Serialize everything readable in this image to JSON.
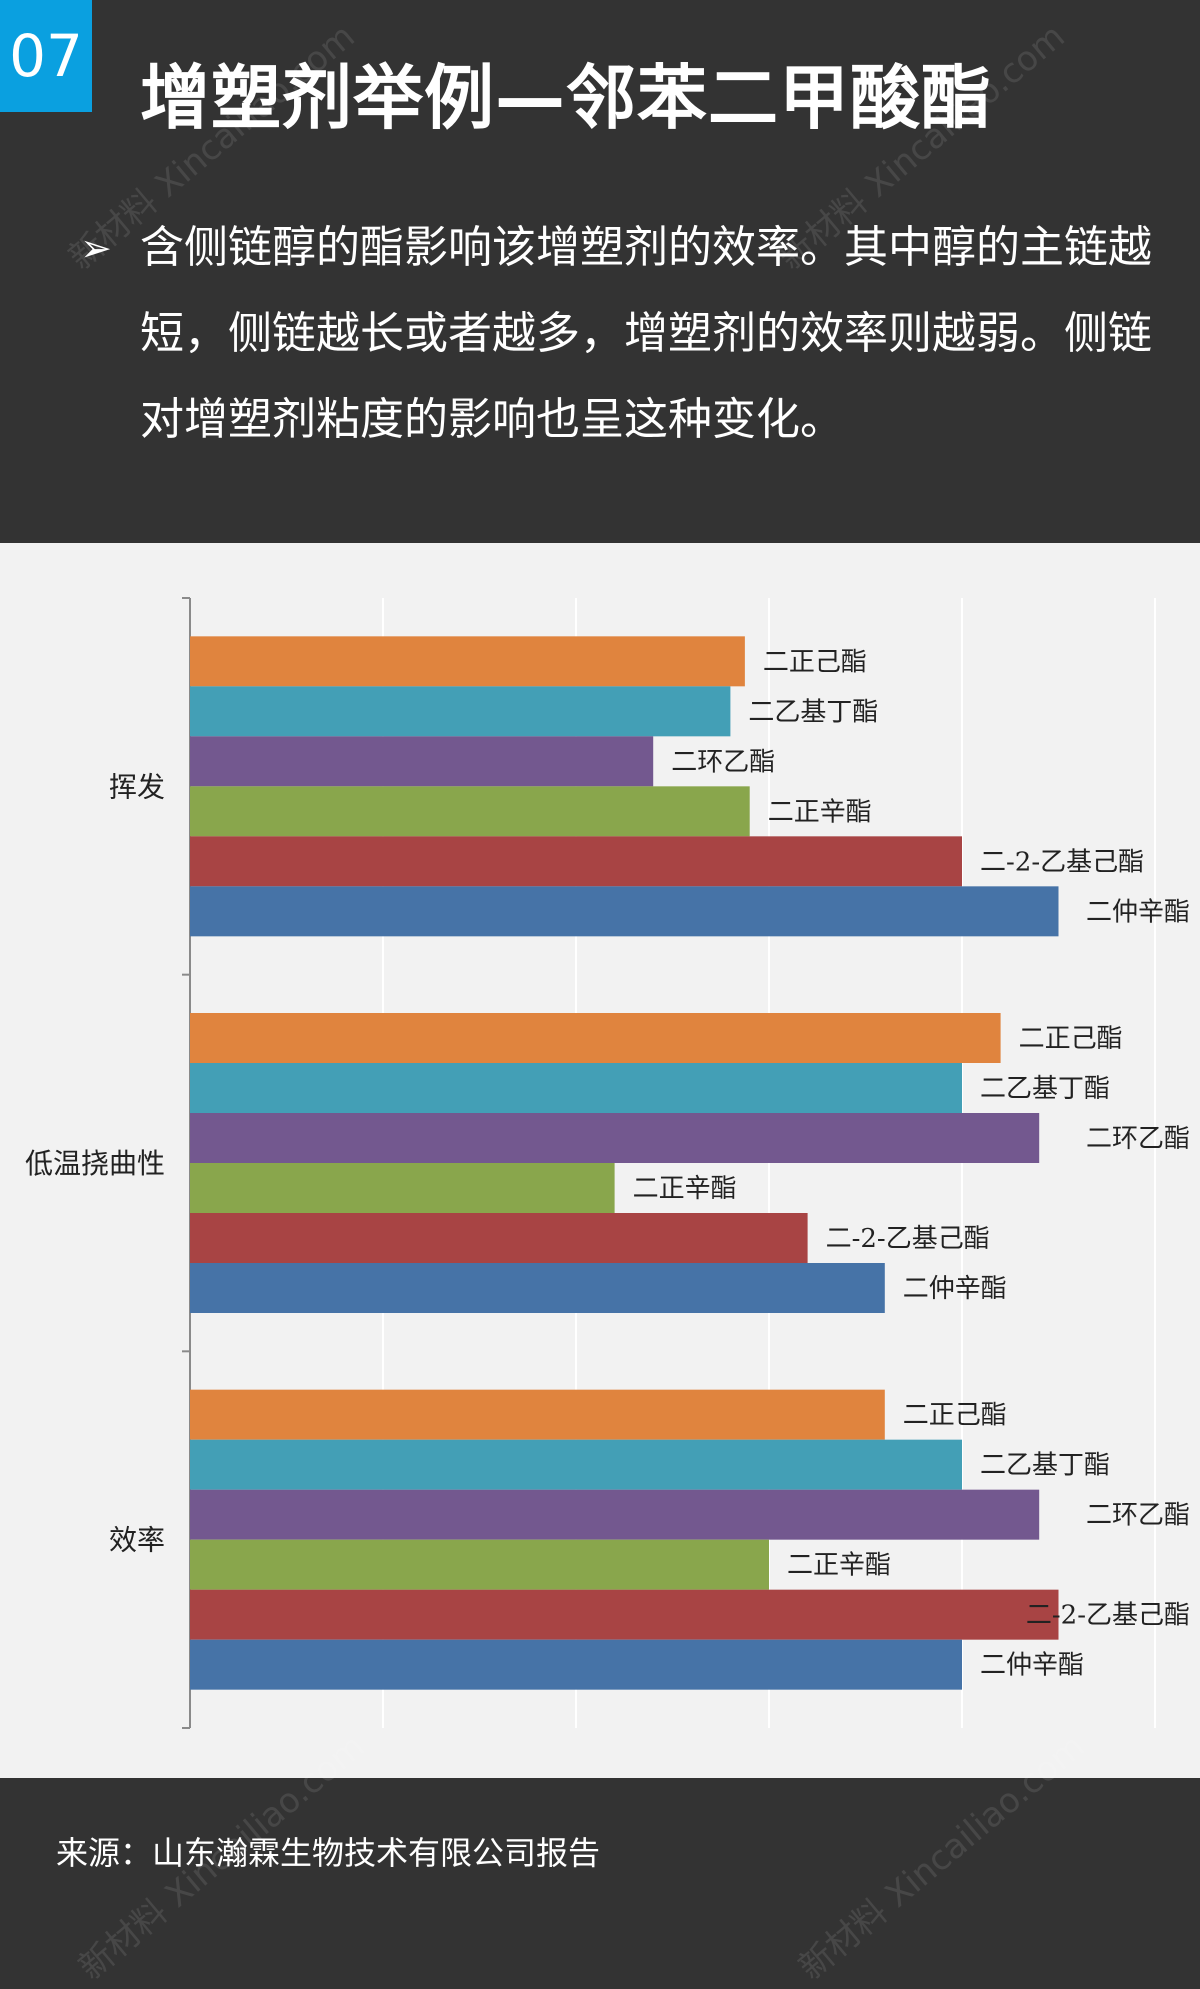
{
  "badge": "07",
  "title": "增塑剂举例—邻苯二甲酸酯",
  "bullet_icon": "arrow-bullet-icon",
  "bullet": "含侧链醇的酯影响该增塑剂的效率。其中醇的主链越短，侧链越长或者越多，增塑剂的效率则越弱。侧链对增塑剂粘度的影响也呈这种变化。",
  "source": "来源：山东瀚霖生物技术有限公司报告",
  "watermark": [
    "新材料",
    "Xincailiao.com"
  ],
  "chart_data": {
    "type": "bar",
    "orientation": "horizontal",
    "categories": [
      "挥发",
      "低温挠曲性",
      "效率"
    ],
    "series": [
      {
        "name": "二正己酯",
        "color": "#e0843e",
        "values": [
          5.75,
          8.4,
          7.2
        ]
      },
      {
        "name": "二乙基丁酯",
        "color": "#439fb6",
        "values": [
          5.6,
          8.0,
          8.0
        ]
      },
      {
        "name": "二环乙酯",
        "color": "#73588f",
        "values": [
          4.8,
          8.8,
          8.8
        ]
      },
      {
        "name": "二正辛酯",
        "color": "#89a64c",
        "values": [
          5.8,
          4.4,
          6.0
        ]
      },
      {
        "name": "二-2-乙基己酯",
        "color": "#a84444",
        "values": [
          8.0,
          6.4,
          9.0
        ]
      },
      {
        "name": "二仲辛酯",
        "color": "#4673a7",
        "values": [
          9.0,
          7.2,
          8.0
        ]
      }
    ],
    "xlim": [
      0,
      10
    ],
    "grid": true,
    "legend": "none",
    "data_labels": "series name at bar end"
  }
}
